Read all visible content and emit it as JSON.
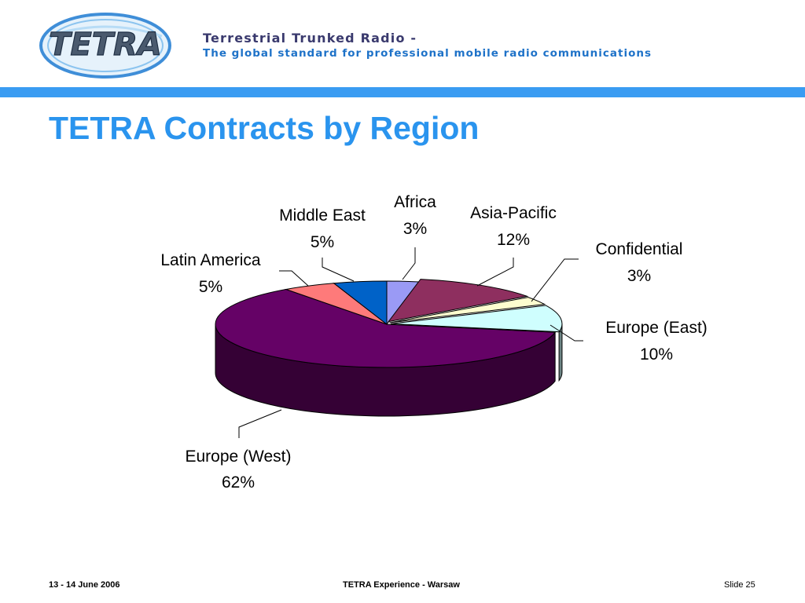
{
  "header": {
    "logo_text": "TETRA",
    "title": "Terrestrial Trunked Radio -",
    "subtitle": "The global standard for professional mobile radio communications"
  },
  "slide": {
    "title": "TETRA Contracts by Region"
  },
  "chart_data": {
    "type": "pie",
    "title": "",
    "style": "3d",
    "slices": [
      {
        "label": "Africa",
        "value": 3,
        "value_label": "3%",
        "color": "#9a9af5"
      },
      {
        "label": "Asia-Pacific",
        "value": 12,
        "value_label": "12%",
        "color": "#8e2f5f"
      },
      {
        "label": "Confidential",
        "value": 3,
        "value_label": "3%",
        "color": "#fdfdcf"
      },
      {
        "label": "Europe (East)",
        "value": 10,
        "value_label": "10%",
        "color": "#cffefe"
      },
      {
        "label": "Europe (West)",
        "value": 62,
        "value_label": "62%",
        "color": "#650266"
      },
      {
        "label": "Latin America",
        "value": 5,
        "value_label": "5%",
        "color": "#fe7a7a"
      },
      {
        "label": "Middle East",
        "value": 5,
        "value_label": "5%",
        "color": "#0062c8"
      }
    ]
  },
  "footer": {
    "date": "13 - 14 June 2006",
    "event": "TETRA Experience - Warsaw",
    "slide_number": "Slide 25"
  }
}
